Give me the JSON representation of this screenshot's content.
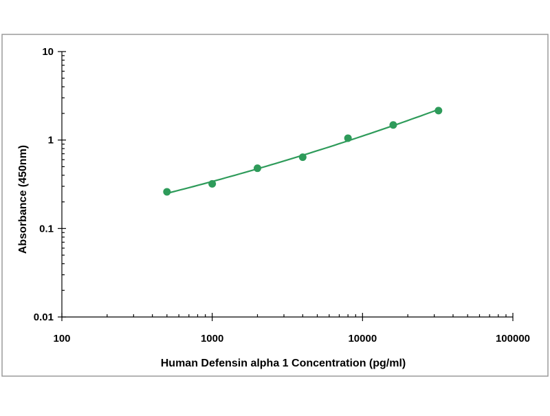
{
  "chart_data": {
    "type": "scatter",
    "xlabel": "Human Defensin alpha 1 Concentration (pg/ml)",
    "ylabel": "Absorbance (450nm)",
    "x_scale": "log",
    "y_scale": "log",
    "xlim": [
      100,
      100000
    ],
    "ylim": [
      0.01,
      10
    ],
    "x_ticks": [
      {
        "value": 100,
        "label": "100"
      },
      {
        "value": 1000,
        "label": "1000"
      },
      {
        "value": 10000,
        "label": "10000"
      },
      {
        "value": 100000,
        "label": "100000"
      }
    ],
    "y_ticks": [
      {
        "value": 10,
        "label": "10"
      },
      {
        "value": 1,
        "label": "1"
      },
      {
        "value": 0.1,
        "label": "0.1"
      },
      {
        "value": 0.01,
        "label": "0.01"
      }
    ],
    "grid": false,
    "legend": "none",
    "series": [
      {
        "points": [
          {
            "x": 500,
            "y": 0.26
          },
          {
            "x": 1000,
            "y": 0.32
          },
          {
            "x": 2000,
            "y": 0.48
          },
          {
            "x": 4000,
            "y": 0.64
          },
          {
            "x": 8000,
            "y": 1.05
          },
          {
            "x": 16000,
            "y": 1.48
          },
          {
            "x": 32000,
            "y": 2.15
          }
        ],
        "color": "#2e9b5a",
        "fit_line": true
      }
    ]
  }
}
